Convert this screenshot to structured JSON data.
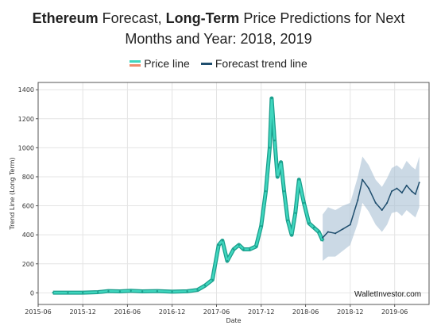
{
  "title_parts": {
    "p1": "Ethereum",
    "p2": " Forecast, ",
    "p3": "Long-Term",
    "p4": " Price Predictions for Next",
    "line2": "Months and Year: 2018, 2019"
  },
  "legend": {
    "price_label": "Price line",
    "forecast_label": "Forecast trend line"
  },
  "watermark": "WalletInvestor.com",
  "colors": {
    "price_line": "#1a9e8c",
    "price_fill": "#3fd6be",
    "price_swatch_top": "#3fd6be",
    "price_swatch_bottom": "#f08a6b",
    "forecast_line": "#1f4e6e",
    "forecast_band": "#a9bfd3",
    "grid": "#e4e4e4"
  },
  "chart_data": {
    "type": "line",
    "xlabel": "Date",
    "ylabel": "Trend Line (Long Term)",
    "x_axis_type": "date",
    "xlim": [
      "2015-06-01",
      "2019-10-20"
    ],
    "ylim": [
      -80,
      1450
    ],
    "grid": true,
    "legend_position": "top-center",
    "x_ticks": [
      "2015-06",
      "2015-12",
      "2016-06",
      "2016-12",
      "2017-06",
      "2017-12",
      "2018-06",
      "2018-12",
      "2019-06"
    ],
    "y_ticks": [
      0,
      200,
      400,
      600,
      800,
      1000,
      1200,
      1400
    ],
    "series": [
      {
        "name": "Price line",
        "x": [
          "2015-08-01",
          "2015-10-01",
          "2015-12-01",
          "2016-02-01",
          "2016-03-15",
          "2016-05-01",
          "2016-06-15",
          "2016-08-01",
          "2016-10-01",
          "2016-12-01",
          "2017-02-01",
          "2017-03-15",
          "2017-04-15",
          "2017-05-15",
          "2017-06-10",
          "2017-06-25",
          "2017-07-15",
          "2017-08-10",
          "2017-09-01",
          "2017-09-20",
          "2017-10-15",
          "2017-11-10",
          "2017-12-01",
          "2017-12-20",
          "2018-01-05",
          "2018-01-13",
          "2018-01-25",
          "2018-02-06",
          "2018-02-20",
          "2018-03-05",
          "2018-03-20",
          "2018-04-05",
          "2018-04-20",
          "2018-05-05",
          "2018-05-25",
          "2018-06-15",
          "2018-07-05",
          "2018-07-25",
          "2018-08-10"
        ],
        "values": [
          1,
          1,
          1,
          5,
          12,
          10,
          14,
          10,
          12,
          8,
          11,
          20,
          50,
          90,
          330,
          360,
          220,
          300,
          330,
          300,
          300,
          320,
          460,
          700,
          1000,
          1340,
          1050,
          800,
          900,
          700,
          500,
          400,
          550,
          780,
          620,
          480,
          450,
          420,
          360
        ]
      },
      {
        "name": "Forecast trend line",
        "x": [
          "2018-08-10",
          "2018-09-01",
          "2018-10-01",
          "2018-11-01",
          "2018-12-01",
          "2019-01-01",
          "2019-01-20",
          "2019-02-15",
          "2019-03-15",
          "2019-04-10",
          "2019-05-01",
          "2019-05-20",
          "2019-06-10",
          "2019-07-01",
          "2019-07-20",
          "2019-08-10",
          "2019-08-25",
          "2019-09-10"
        ],
        "values": [
          380,
          420,
          410,
          440,
          470,
          640,
          780,
          720,
          620,
          570,
          620,
          700,
          720,
          690,
          740,
          700,
          680,
          760
        ],
        "lower": [
          220,
          250,
          250,
          290,
          330,
          480,
          620,
          560,
          470,
          420,
          470,
          550,
          560,
          530,
          570,
          540,
          520,
          590
        ],
        "upper": [
          540,
          590,
          570,
          600,
          620,
          800,
          940,
          880,
          780,
          730,
          790,
          860,
          880,
          850,
          910,
          870,
          850,
          940
        ]
      }
    ]
  }
}
